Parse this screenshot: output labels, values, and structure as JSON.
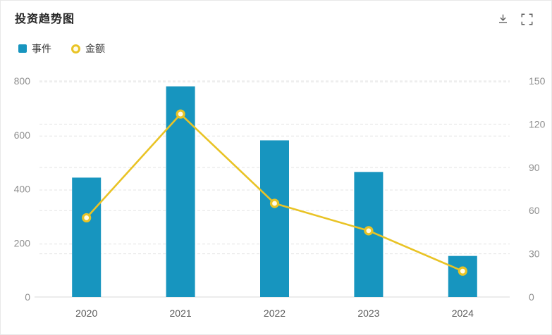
{
  "header": {
    "title": "投资趋势图"
  },
  "legend": {
    "items": [
      {
        "label": "事件",
        "marker": "square",
        "color": "#1795bf"
      },
      {
        "label": "金额",
        "marker": "ring",
        "color": "#e9c325"
      }
    ]
  },
  "chart_data": {
    "type": "combo-bar-line",
    "title": "投资趋势图",
    "categories": [
      "2020",
      "2021",
      "2022",
      "2023",
      "2024"
    ],
    "series": [
      {
        "name": "事件",
        "type": "bar",
        "axis": "left",
        "color": "#1795bf",
        "values": [
          442,
          780,
          580,
          463,
          152
        ]
      },
      {
        "name": "金额",
        "type": "line",
        "axis": "right",
        "color": "#e9c325",
        "marker_fill": "#fffce8",
        "values": [
          55,
          127,
          65,
          46,
          18
        ]
      }
    ],
    "left_axis": {
      "min": 0,
      "max": 800,
      "ticks": [
        0,
        200,
        400,
        600,
        800
      ]
    },
    "right_axis": {
      "min": 0,
      "max": 150,
      "ticks": [
        0,
        30,
        60,
        90,
        120,
        150
      ]
    },
    "grid": "horizontal-dashed-both-axes",
    "legend_position": "top-left",
    "colors": {
      "grid": "#e4e4e4",
      "axis_line": "#d9d9d9",
      "y_label": "#8f8f8f",
      "x_label": "#5a5a5a"
    }
  }
}
